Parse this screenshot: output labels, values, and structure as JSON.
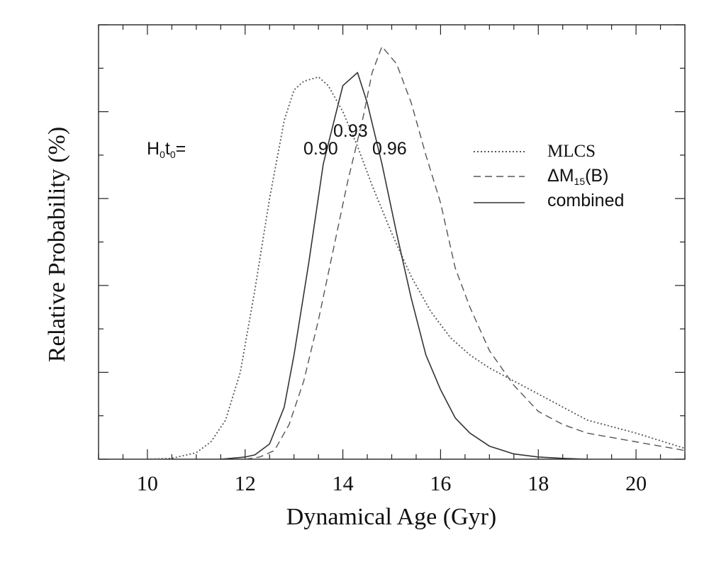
{
  "chart_data": {
    "type": "line",
    "title": "",
    "xlabel": "Dynamical Age (Gyr)",
    "ylabel": "Relative Probability (%)",
    "xlim": [
      9,
      21
    ],
    "ylim": [
      0,
      100
    ],
    "x_ticks": [
      10,
      12,
      14,
      16,
      18,
      20
    ],
    "x_tick_labels": [
      "10",
      "12",
      "14",
      "16",
      "18",
      "20"
    ],
    "grid": false,
    "legend_position": "upper-right",
    "annotations": {
      "h0t0_label": "H",
      "h0t0_sub1": "0",
      "h0t0_mid": "t",
      "h0t0_sub2": "0",
      "h0t0_eq": "=",
      "values": [
        {
          "text": "0.90",
          "x": 13.5
        },
        {
          "text": "0.93",
          "x": 14.2
        },
        {
          "text": "0.96",
          "x": 15.0
        }
      ]
    },
    "series": [
      {
        "name": "MLCS",
        "style": "dotted",
        "x": [
          10.0,
          10.5,
          11.0,
          11.3,
          11.6,
          11.9,
          12.2,
          12.5,
          12.8,
          13.0,
          13.2,
          13.5,
          13.7,
          14.0,
          14.3,
          14.6,
          15.0,
          15.4,
          15.8,
          16.2,
          16.6,
          17.0,
          17.5,
          18.0,
          18.5,
          19.0,
          20.0,
          21.0
        ],
        "y": [
          0,
          0.2,
          1.5,
          4,
          9,
          20,
          39,
          60,
          78,
          85,
          87,
          88,
          86,
          80,
          72,
          63,
          52,
          42,
          34,
          28,
          24,
          21,
          18,
          15,
          12,
          9,
          6,
          2.5
        ]
      },
      {
        "name": "ΔM15(B)",
        "name_main": "ΔM",
        "name_sub": "15",
        "name_tail": "(B)",
        "style": "dashed",
        "x": [
          12.0,
          12.3,
          12.6,
          12.9,
          13.2,
          13.5,
          13.8,
          14.1,
          14.4,
          14.6,
          14.8,
          15.1,
          15.4,
          15.7,
          16.0,
          16.3,
          16.6,
          17.0,
          17.5,
          18.0,
          18.5,
          19.0,
          20.0,
          21.0
        ],
        "y": [
          0,
          0.5,
          2,
          8,
          18,
          32,
          48,
          64,
          78,
          89,
          95,
          91,
          82,
          70,
          59,
          44,
          35,
          25,
          17,
          11,
          8,
          6,
          4,
          2
        ]
      },
      {
        "name": "combined",
        "style": "solid",
        "x": [
          11.5,
          12.0,
          12.2,
          12.5,
          12.8,
          13.0,
          13.3,
          13.6,
          14.0,
          14.3,
          14.5,
          14.8,
          15.1,
          15.4,
          15.7,
          16.0,
          16.3,
          16.6,
          17.0,
          17.5,
          18.0,
          18.5,
          19.0
        ],
        "y": [
          0,
          0.5,
          1,
          3.5,
          12,
          24,
          45,
          68,
          86,
          89,
          82,
          68,
          52,
          37,
          24,
          16,
          9.5,
          6,
          3,
          1.2,
          0.5,
          0.2,
          0
        ]
      }
    ]
  }
}
